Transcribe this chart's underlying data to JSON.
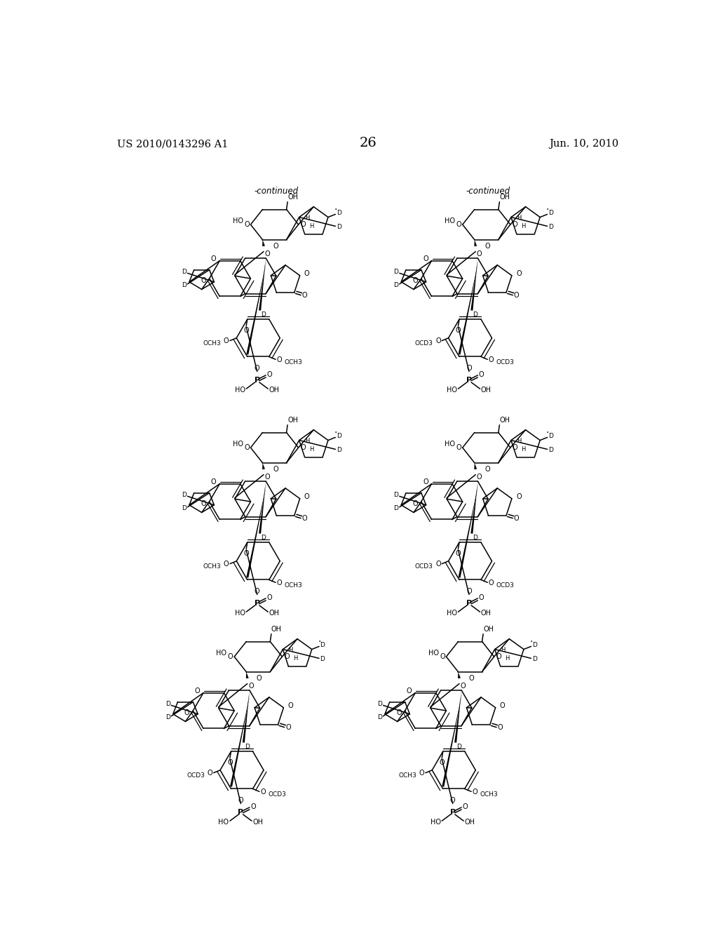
{
  "background_color": "#ffffff",
  "header_left": "US 2010/0143296 A1",
  "header_right": "Jun. 10, 2010",
  "page_number": "26",
  "font_size_header": 10.5,
  "font_size_page": 14,
  "text_color": "#000000",
  "lw": 1.1
}
